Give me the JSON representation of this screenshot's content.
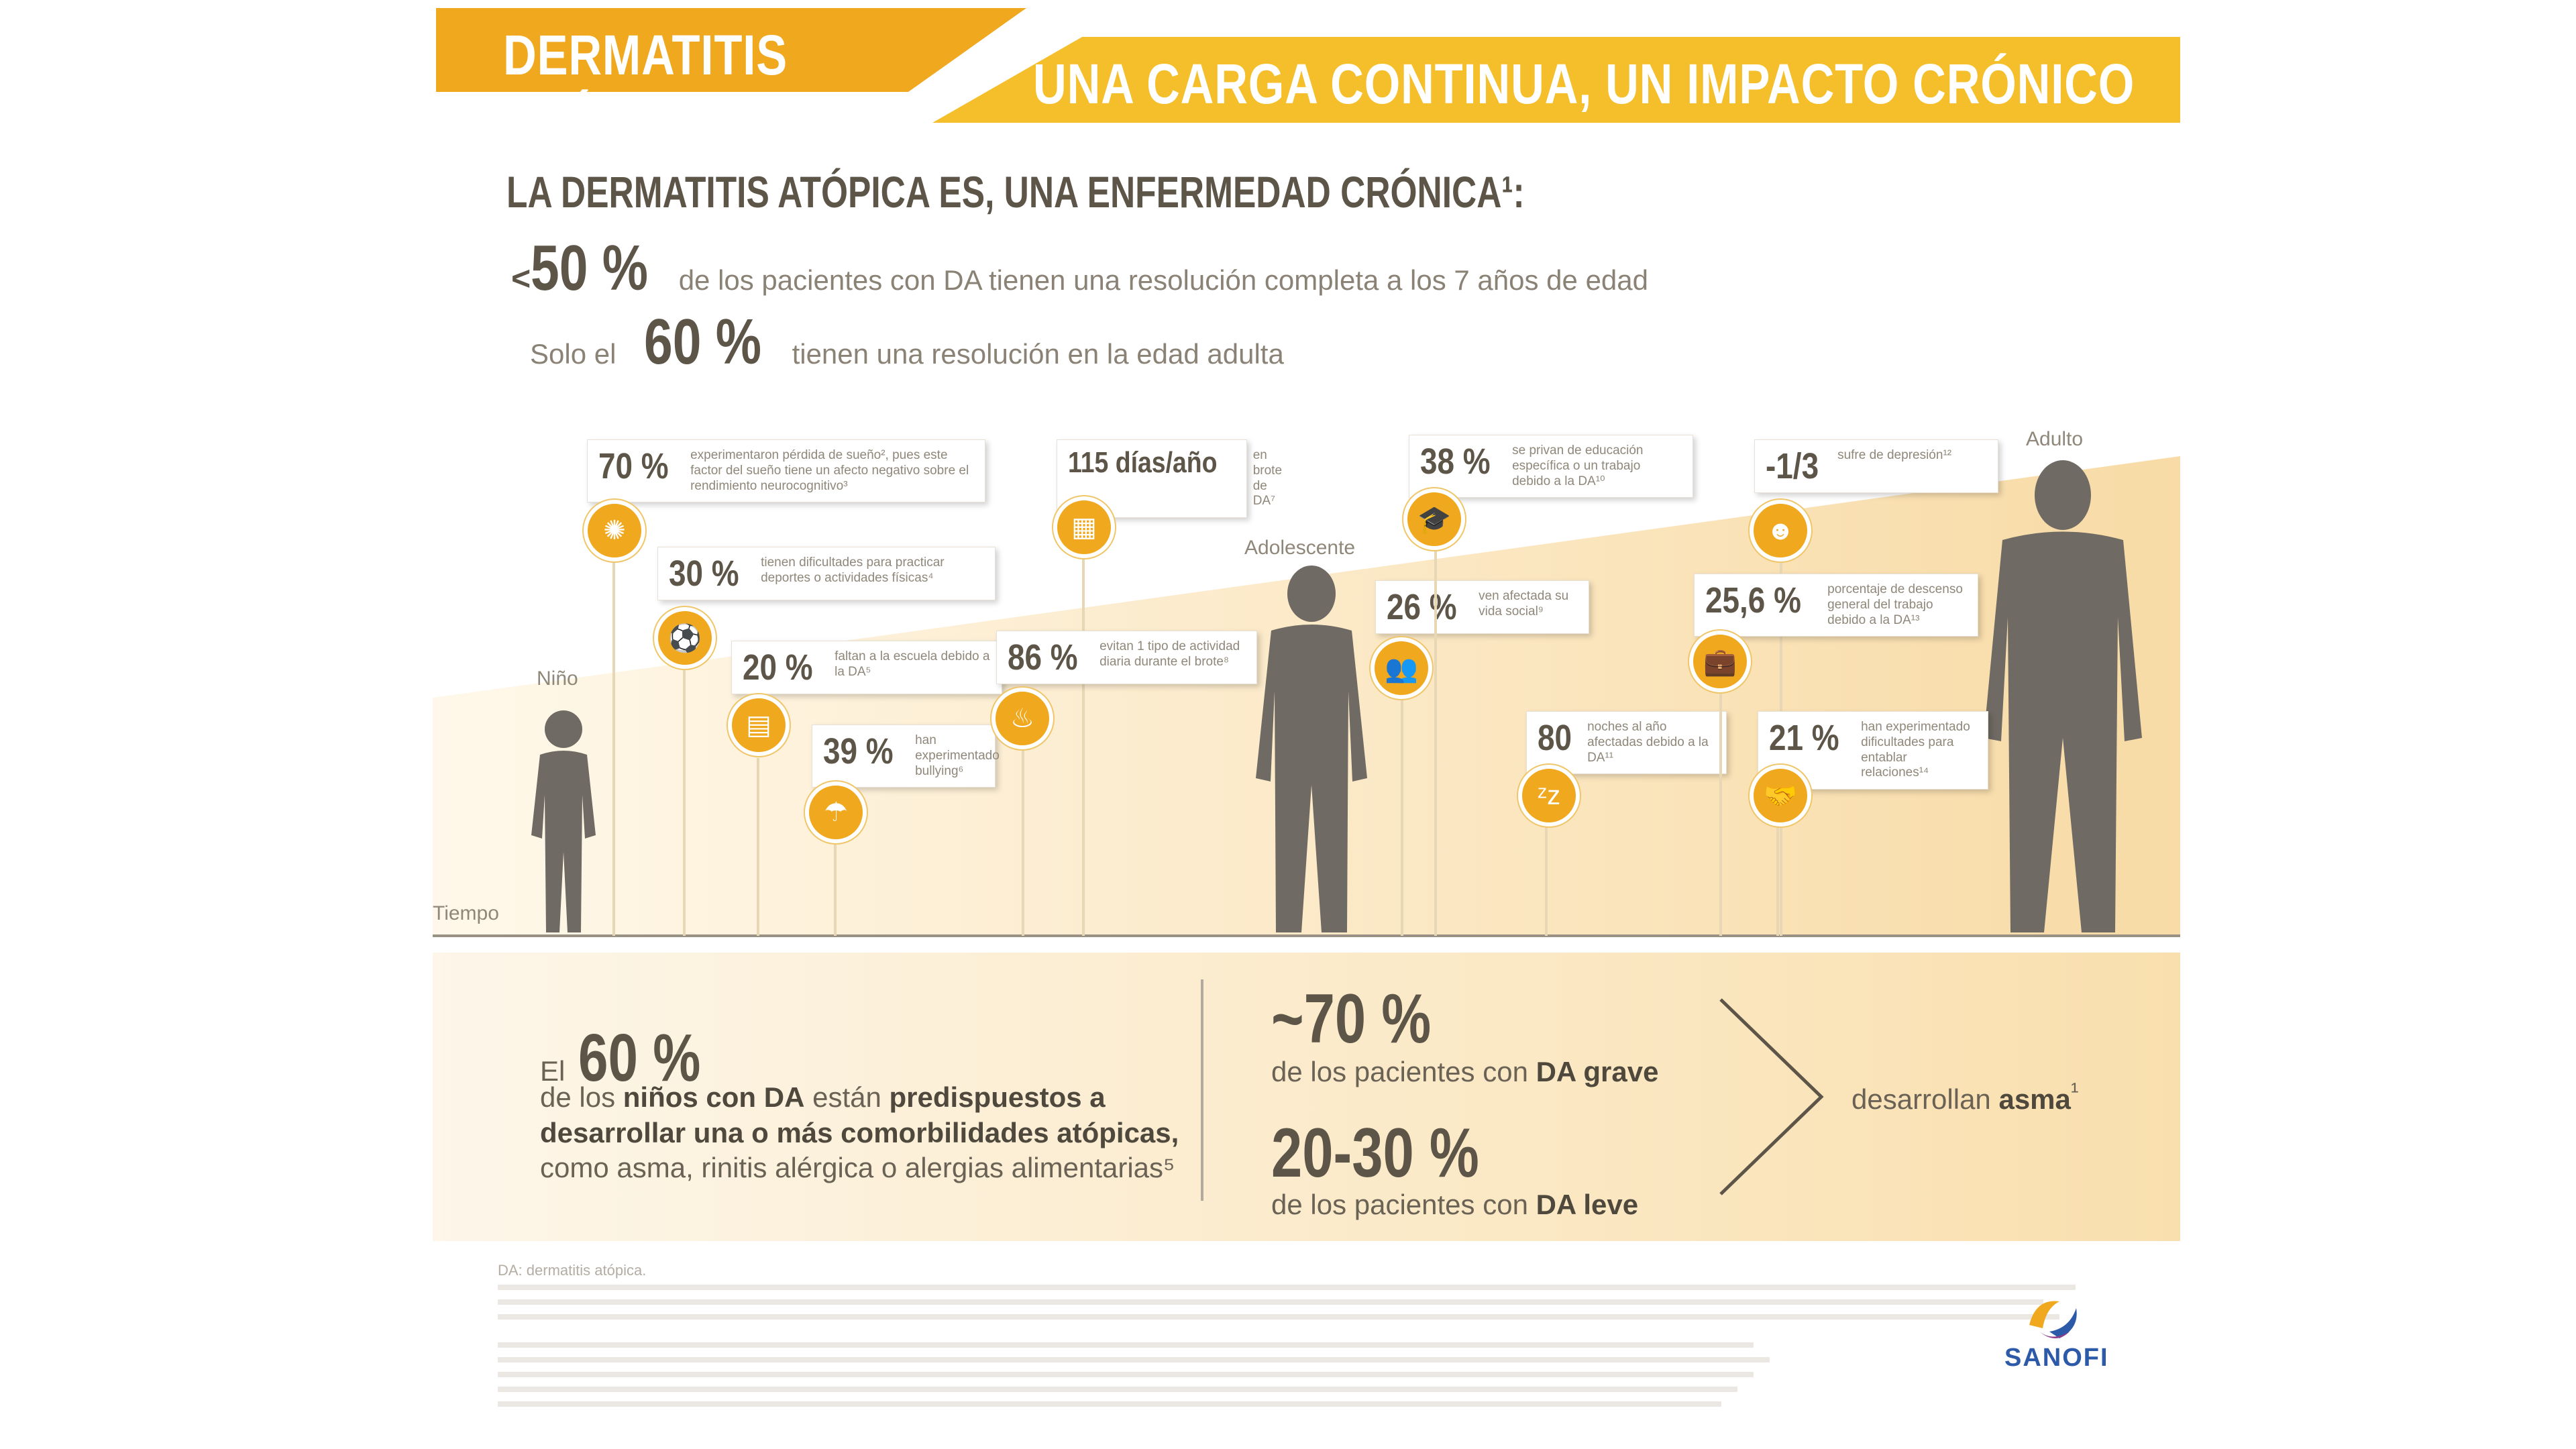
{
  "header": {
    "title_part1": "DERMATITIS ATÓPICA,",
    "title_part2": "UNA CARGA CONTINUA, UN IMPACTO CRÓNICO"
  },
  "intro": {
    "heading": "LA DERMATITIS ATÓPICA ES, UNA ENFERMEDAD CRÓNICA¹:",
    "stat1_prefix": "<",
    "stat1_value": "50 %",
    "stat1_text": "de los pacientes con DA tienen una resolución completa a los 7 años de edad",
    "stat2_prefix": "Solo el",
    "stat2_value": "60 %",
    "stat2_text": "tienen una resolución en la edad adulta"
  },
  "timeline": {
    "axis_label": "Tiempo",
    "stage_child": "Niño",
    "stage_teen": "Adolescente",
    "stage_adult": "Adulto",
    "callouts": [
      {
        "num": "70 %",
        "text": "experimentaron pérdida de sueño², pues este factor del sueño tiene un afecto negativo sobre el rendimiento neurocognitivo³",
        "icon": "brain-icon"
      },
      {
        "num": "30 %",
        "text": "tienen dificultades para practicar deportes o actividades físicas⁴",
        "icon": "ball-icon"
      },
      {
        "num": "20 %",
        "text": "faltan a la escuela debido a la DA⁵",
        "icon": "school-icon"
      },
      {
        "num": "39 %",
        "text": "han experimentado bullying⁶",
        "icon": "bullying-icon"
      },
      {
        "num": "115 días/año",
        "text": "en brote de DA⁷",
        "icon": "calendar-icon"
      },
      {
        "num": "86 %",
        "text": "evitan 1 tipo de actividad diaria durante el brote⁸",
        "icon": "bottle-icon"
      },
      {
        "num": "26 %",
        "text": "ven afectada su vida social⁹",
        "icon": "people-icon"
      },
      {
        "num": "38 %",
        "text": "se privan de educación específica o un trabajo debido a la DA¹⁰",
        "icon": "graduation-icon"
      },
      {
        "num": "80",
        "text": "noches al año afectadas debido a la DA¹¹",
        "icon": "sleep-icon"
      },
      {
        "num": "-1/3",
        "text": "sufre de depresión¹²",
        "icon": "head-icon"
      },
      {
        "num": "25,6 %",
        "text": "porcentaje de descenso general del trabajo debido a la DA¹³",
        "icon": "briefcase-icon"
      },
      {
        "num": "21 %",
        "text": "han experimentado dificultades para entablar relaciones¹⁴",
        "icon": "handshake-icon"
      }
    ]
  },
  "bottom": {
    "left_prefix": "El",
    "left_value": "60 %",
    "left_line1_a": "de los ",
    "left_line1_b": "niños con DA",
    "left_line1_c": " están ",
    "left_line1_d": "predispuestos a",
    "left_line2": "desarrollar una o más comorbilidades atópicas,",
    "left_line3": "como asma, rinitis alérgica o alergias alimentarias⁵",
    "right_value1": "~70 %",
    "right_text1_a": "de los pacientes con ",
    "right_text1_b": "DA grave",
    "right_value2": "20-30 %",
    "right_text2_a": "de los pacientes con ",
    "right_text2_b": "DA leve",
    "result_a": "desarrollan ",
    "result_b": "asma",
    "result_sup": "¹"
  },
  "footer": {
    "abbrev": "DA: dermatitis atópica.",
    "logo_text": "SANOFI"
  },
  "colors": {
    "orange": "#f0a81f",
    "yellow": "#f5bf2b",
    "silhouette": "#6f6a63"
  }
}
